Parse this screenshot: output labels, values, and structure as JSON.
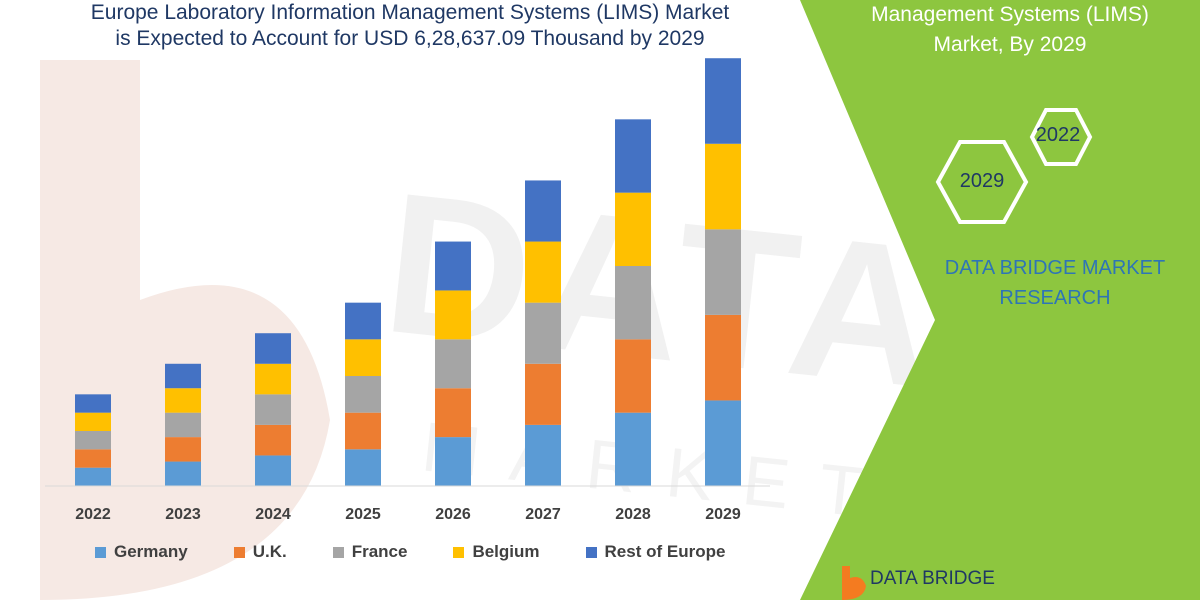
{
  "header": {
    "title_line1": "Europe Laboratory Information Management Systems (LIMS) Market",
    "title_line2": "is Expected to Account for USD 6,28,637.09 Thousand by 2029"
  },
  "side_panel": {
    "title_line1": "Management Systems (LIMS)",
    "title_line2": "Market, By 2029",
    "hex_year_back": "2022",
    "hex_year_front": "2029",
    "brand_line1": "DATA BRIDGE MARKET",
    "brand_line2": "RESEARCH",
    "logo_text": "DATA BRIDGE",
    "panel_color": "#8dc63f",
    "logo_color": "#f47b20"
  },
  "chart_data": {
    "type": "bar",
    "stacked": true,
    "categories": [
      "2022",
      "2023",
      "2024",
      "2025",
      "2026",
      "2027",
      "2028",
      "2029"
    ],
    "series": [
      {
        "name": "Germany",
        "color": "#5b9bd5",
        "values": [
          15,
          20,
          25,
          30,
          40,
          50,
          60,
          70
        ]
      },
      {
        "name": "U.K.",
        "color": "#ed7d31",
        "values": [
          15,
          20,
          25,
          30,
          40,
          50,
          60,
          70
        ]
      },
      {
        "name": "France",
        "color": "#a5a5a5",
        "values": [
          15,
          20,
          25,
          30,
          40,
          50,
          60,
          70
        ]
      },
      {
        "name": "Belgium",
        "color": "#ffc000",
        "values": [
          15,
          20,
          25,
          30,
          40,
          50,
          60,
          70
        ]
      },
      {
        "name": "Rest of Europe",
        "color": "#4472c4",
        "values": [
          15,
          20,
          25,
          30,
          40,
          50,
          60,
          70
        ]
      }
    ],
    "ylim": [
      0,
      360
    ],
    "y_axis_visible": false,
    "grid": false,
    "legend_position": "bottom"
  }
}
